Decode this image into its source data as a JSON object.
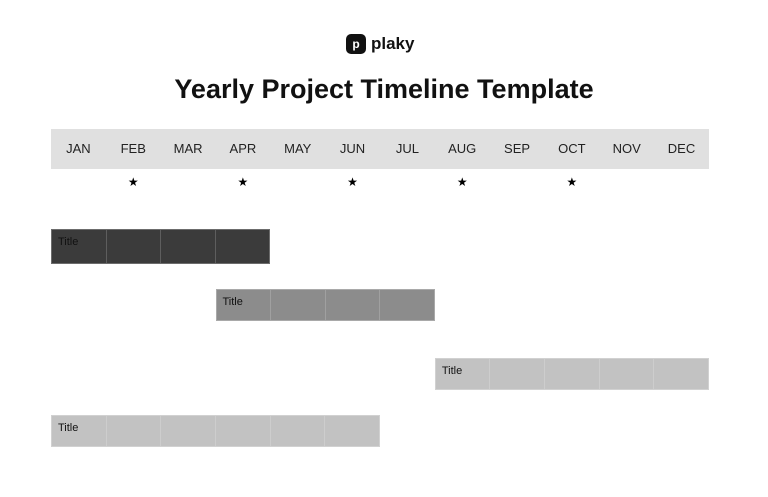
{
  "logo": {
    "mark": "p",
    "text": "plaky"
  },
  "title": "Yearly Project Timeline Template",
  "months": [
    "JAN",
    "FEB",
    "MAR",
    "APR",
    "MAY",
    "JUN",
    "JUL",
    "AUG",
    "SEP",
    "OCT",
    "NOV",
    "DEC"
  ],
  "milestones": {
    "symbol": "★",
    "months": [
      1,
      3,
      5,
      7,
      9
    ]
  },
  "bars": [
    {
      "label": "Title",
      "start_month": 0,
      "months": 4,
      "color": "#3b3b3b"
    },
    {
      "label": "Title",
      "start_month": 3,
      "months": 4,
      "color": "#8c8c8c"
    },
    {
      "label": "Title",
      "start_month": 7,
      "months": 5,
      "color": "#c2c2c2"
    },
    {
      "label": "Title",
      "start_month": 0,
      "months": 6,
      "color": "#c2c2c2"
    }
  ]
}
